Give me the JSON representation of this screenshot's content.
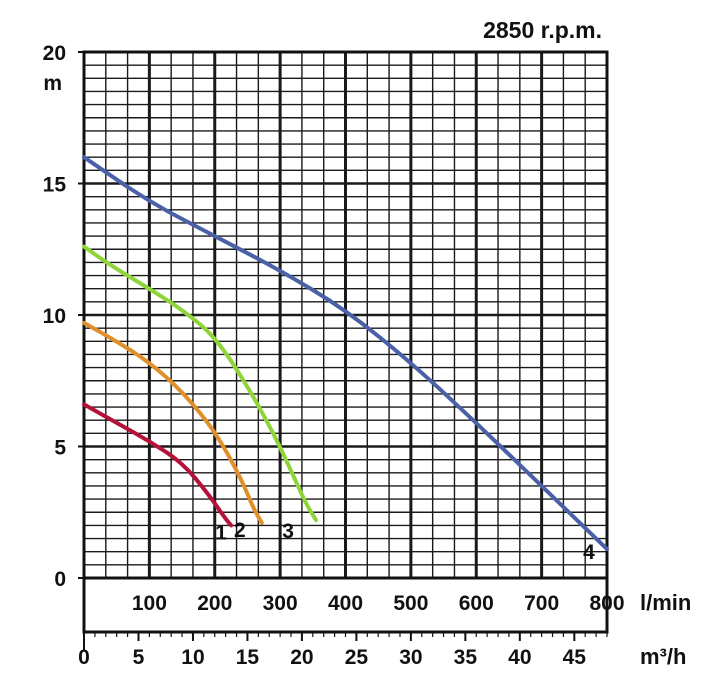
{
  "chart_data": {
    "type": "line",
    "title": "2850 r.p.m.",
    "ylabel": "m",
    "xlabel_primary": "l/min",
    "xlabel_secondary": "m³/h",
    "ylim": [
      0,
      20
    ],
    "xlim": [
      0,
      800
    ],
    "secondary_xlim": [
      0,
      48
    ],
    "y_ticks": [
      "0",
      "5",
      "10",
      "15",
      "20"
    ],
    "x_ticks_primary": [
      "100",
      "200",
      "300",
      "400",
      "500",
      "600",
      "700",
      "800"
    ],
    "x_ticks_secondary": [
      "0",
      "5",
      "10",
      "15",
      "20",
      "25",
      "30",
      "35",
      "40",
      "45"
    ],
    "grid": true,
    "series": [
      {
        "name": "1",
        "color": "#b5123a",
        "points": [
          [
            0,
            6.6
          ],
          [
            50,
            5.9
          ],
          [
            100,
            5.2
          ],
          [
            150,
            4.4
          ],
          [
            190,
            3.2
          ],
          [
            215,
            2.3
          ],
          [
            225,
            2.0
          ]
        ]
      },
      {
        "name": "2",
        "color": "#e0902a",
        "points": [
          [
            0,
            9.7
          ],
          [
            50,
            9.0
          ],
          [
            100,
            8.2
          ],
          [
            150,
            7.1
          ],
          [
            200,
            5.6
          ],
          [
            240,
            3.8
          ],
          [
            260,
            2.6
          ],
          [
            272,
            2.1
          ]
        ]
      },
      {
        "name": "3",
        "color": "#8fd53a",
        "points": [
          [
            0,
            12.6
          ],
          [
            40,
            11.9
          ],
          [
            100,
            11.0
          ],
          [
            150,
            10.2
          ],
          [
            200,
            9.2
          ],
          [
            250,
            7.3
          ],
          [
            290,
            5.5
          ],
          [
            320,
            3.9
          ],
          [
            340,
            2.8
          ],
          [
            355,
            2.2
          ]
        ]
      },
      {
        "name": "4",
        "color": "#4a61a8",
        "points": [
          [
            0,
            16.0
          ],
          [
            100,
            14.3
          ],
          [
            200,
            13.0
          ],
          [
            300,
            11.7
          ],
          [
            400,
            10.2
          ],
          [
            500,
            8.2
          ],
          [
            600,
            5.9
          ],
          [
            700,
            3.5
          ],
          [
            800,
            1.1
          ]
        ]
      }
    ]
  }
}
